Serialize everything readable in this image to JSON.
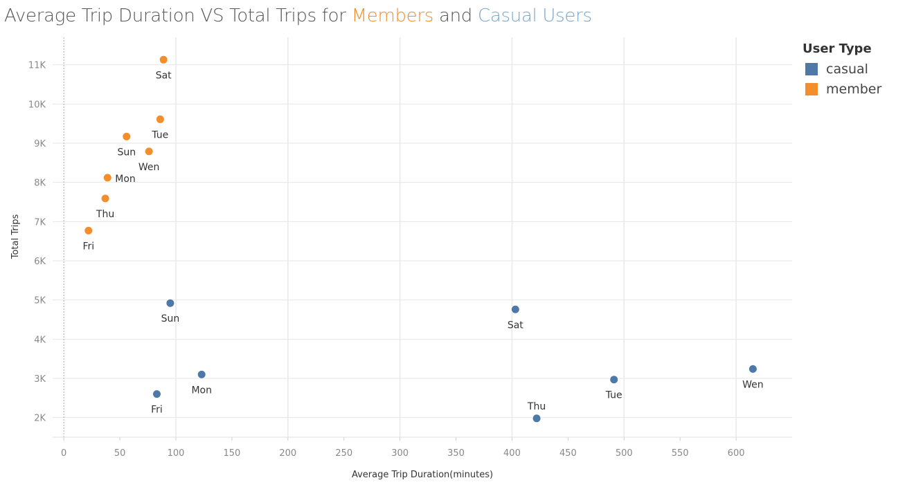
{
  "header": {
    "title_prefix": "Average Trip Duration VS Total Trips for ",
    "title_member": "Members",
    "title_and": " and ",
    "title_casual": "Casual Users"
  },
  "legend": {
    "title": "User Type",
    "items": [
      {
        "label": "casual",
        "color": "#4e79a7"
      },
      {
        "label": "member",
        "color": "#f28e2b"
      }
    ]
  },
  "chart_data": {
    "type": "scatter",
    "title": "Average Trip Duration VS Total Trips for Members and Casual Users",
    "xlabel": "Average Trip Duration(minutes)",
    "ylabel": "Total Trips",
    "xlim": [
      -10,
      650
    ],
    "ylim": [
      1500,
      11700
    ],
    "x_ticks": [
      0,
      50,
      100,
      150,
      200,
      250,
      300,
      350,
      400,
      450,
      500,
      550,
      600
    ],
    "y_ticks": [
      2000,
      3000,
      4000,
      5000,
      6000,
      7000,
      8000,
      9000,
      10000,
      11000
    ],
    "y_tick_labels": [
      "2K",
      "3K",
      "4K",
      "5K",
      "6K",
      "7K",
      "8K",
      "9K",
      "10K",
      "11K"
    ],
    "grid": true,
    "legend_position": "top-right",
    "series": [
      {
        "name": "member",
        "color": "#f28e2b",
        "points": [
          {
            "label": "Sat",
            "x": 89,
            "y": 11130,
            "label_pos": "below"
          },
          {
            "label": "Tue",
            "x": 86,
            "y": 9610,
            "label_pos": "below"
          },
          {
            "label": "Sun",
            "x": 56,
            "y": 9170,
            "label_pos": "below"
          },
          {
            "label": "Wen",
            "x": 76,
            "y": 8790,
            "label_pos": "below"
          },
          {
            "label": "Mon",
            "x": 39,
            "y": 8120,
            "label_pos": "right"
          },
          {
            "label": "Thu",
            "x": 37,
            "y": 7590,
            "label_pos": "below"
          },
          {
            "label": "Fri",
            "x": 22,
            "y": 6770,
            "label_pos": "below"
          }
        ]
      },
      {
        "name": "casual",
        "color": "#4e79a7",
        "points": [
          {
            "label": "Sun",
            "x": 95,
            "y": 4920,
            "label_pos": "below"
          },
          {
            "label": "Sat",
            "x": 403,
            "y": 4760,
            "label_pos": "below"
          },
          {
            "label": "Mon",
            "x": 123,
            "y": 3100,
            "label_pos": "below"
          },
          {
            "label": "Fri",
            "x": 83,
            "y": 2600,
            "label_pos": "below"
          },
          {
            "label": "Wen",
            "x": 615,
            "y": 3240,
            "label_pos": "below"
          },
          {
            "label": "Tue",
            "x": 491,
            "y": 2970,
            "label_pos": "below"
          },
          {
            "label": "Thu",
            "x": 422,
            "y": 1980,
            "label_pos": "above"
          }
        ]
      }
    ]
  }
}
